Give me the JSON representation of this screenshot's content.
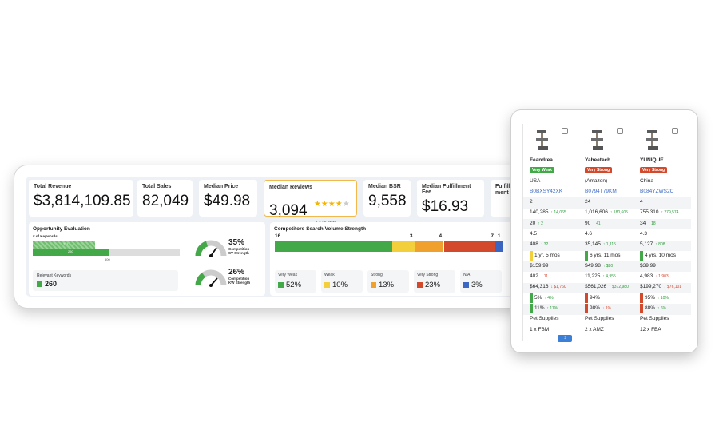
{
  "metrics": [
    {
      "label": "Total Revenue",
      "value": "$3,814,109.85"
    },
    {
      "label": "Total Sales",
      "value": "82,049"
    },
    {
      "label": "Median Price",
      "value": "$49.98"
    },
    {
      "label": "Median Reviews",
      "value": "3,094",
      "rating": "4.4 / 5 stars",
      "stars_filled": 4
    },
    {
      "label": "Median BSR",
      "value": "9,558"
    },
    {
      "label": "Median Fulfillment Fee",
      "value": "$16.93"
    },
    {
      "label": "Fulfill- ment",
      "value": ""
    }
  ],
  "opportunity": {
    "title": "Opportunity Evaluation",
    "keywords_label": "# of Keywords",
    "bar_labels": [
      "271",
      "250",
      "500"
    ],
    "relevant_label": "Relevant Keywords",
    "relevant_value": "260",
    "gauges": [
      {
        "value": "35%",
        "label_line1": "Competition",
        "label_line2": "SV Strength",
        "fraction": 0.35
      },
      {
        "value": "26%",
        "label_line1": "Competition",
        "label_line2": "KW Strength",
        "fraction": 0.26
      }
    ]
  },
  "competitors": {
    "title": "Competitors Search Volume Strength",
    "segments": [
      {
        "count": "16",
        "share": 0.52,
        "color": "#43a847"
      },
      {
        "count": "3",
        "share": 0.1,
        "color": "#f3cf3c"
      },
      {
        "count": "4",
        "share": 0.13,
        "color": "#f0a02c"
      },
      {
        "count": "7",
        "share": 0.23,
        "color": "#d24a2b"
      },
      {
        "count": "1",
        "share": 0.03,
        "color": "#3c66c4"
      }
    ],
    "tiles": [
      {
        "label": "Very Weak",
        "value": "52%",
        "color": "#43a847"
      },
      {
        "label": "Weak",
        "value": "10%",
        "color": "#f3cf3c"
      },
      {
        "label": "Strong",
        "value": "13%",
        "color": "#f0a02c"
      },
      {
        "label": "Very Strong",
        "value": "23%",
        "color": "#d24a2b"
      },
      {
        "label": "N/A",
        "value": "3%",
        "color": "#3c66c4"
      }
    ]
  },
  "products": [
    {
      "brand": "Feandrea",
      "badge": "Very Weak",
      "badge_color": "#43a847",
      "origin": "USA",
      "asin": "B0BXSY42XK",
      "r1": "2",
      "r2": "140,285",
      "r2d": "↑ 14,065",
      "r3": "20",
      "r3d": "↑ 2",
      "r4": "4.5",
      "r5": "408",
      "r5d": "↑ 32",
      "r6": "1 yr, 5 mos",
      "r6c": "#f3cf3c",
      "r7": "$159.99",
      "r8": "402",
      "r8d": "↓ 11",
      "r9": "$64,316",
      "r9d": "↓ $1,760",
      "r10": "5%",
      "r10d": "↑ 4%",
      "r11": "11%",
      "r11d": "↑ 11%",
      "r10c": "#43a847",
      "r12": "Pet Supplies",
      "r13": "1 x FBM"
    },
    {
      "brand": "Yaheetech",
      "badge": "Very Strong",
      "badge_color": "#d24a2b",
      "origin": "(Amazon)",
      "asin": "B0794T79KM",
      "r1": "24",
      "r2": "1,016,606",
      "r2d": "↑ 180,605",
      "r3": "90",
      "r3d": "↑ 41",
      "r4": "4.6",
      "r5": "35,145",
      "r5d": "↑ 1,115",
      "r6": "6 yrs, 11 mos",
      "r6c": "#43a847",
      "r7": "$49.98",
      "r7d": "↑ $20",
      "r8": "11,225",
      "r8d": "↑ 4,955",
      "r9": "$561,026",
      "r9d": "↑ $372,980",
      "r10": "94%",
      "r10d": "",
      "r11": "98%",
      "r11d": "↓ 1%",
      "r10c": "#d24a2b",
      "r12": "Pet Supplies",
      "r13": "2 x AMZ"
    },
    {
      "brand": "YUNIQUE",
      "badge": "Very Strong",
      "badge_color": "#d24a2b",
      "origin": "China",
      "asin": "B084YZWS2C",
      "r1": "4",
      "r2": "755,310",
      "r2d": "↑ 279,574",
      "r3": "34",
      "r3d": "↑ 18",
      "r4": "4.3",
      "r5": "5,127",
      "r5d": "↑ 808",
      "r6": "4 yrs, 10 mos",
      "r6c": "#43a847",
      "r7": "$39.99",
      "r8": "4,983",
      "r8d": "↓ 1,903",
      "r9": "$199,270",
      "r9d": "↓ $76,101",
      "r10": "95%",
      "r10d": "↑ 10%",
      "r11": "88%",
      "r11d": "↑ 6%",
      "r10c": "#d24a2b",
      "r12": "Pet Supplies",
      "r13": "12 x FBA"
    }
  ]
}
